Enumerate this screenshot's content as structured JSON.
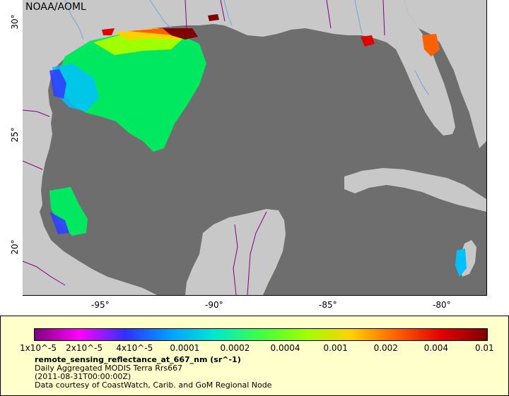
{
  "map": {
    "credit": "NOAA/AOML",
    "lon_ticks": [
      "-95°",
      "-90°",
      "-85°",
      "-80°"
    ],
    "lat_ticks": [
      "30°",
      "25°",
      "20°"
    ],
    "lon_range": [
      -98.2,
      -78.0
    ],
    "lat_range": [
      18.0,
      31.0
    ],
    "colors": {
      "ocean": "#6e6e6e",
      "land": "#c8c8c8",
      "rivers": "#6fa8dc",
      "borders": "#800080"
    }
  },
  "legend": {
    "scale_labels": [
      "1x10^-5",
      "2x10^-5",
      "4x10^-5",
      "0.0001",
      "0.0002",
      "0.0004",
      "0.001",
      "0.002",
      "0.004",
      "0.01"
    ],
    "variable": "remote_sensing_reflectance_at_667_nm (sr^-1)",
    "product": "Daily Aggregated MODIS Terra Rrs667",
    "date": "(2011-08-31T00:00:00Z)",
    "source": "Data courtesy of CoastWatch, Carib. and GoM Regional Node",
    "scale_colors": [
      "#800080",
      "#ff00ff",
      "#3030ff",
      "#00a0ff",
      "#00e8d0",
      "#40ff40",
      "#a0ff00",
      "#ffd000",
      "#ff6000",
      "#e00000",
      "#800000"
    ]
  }
}
